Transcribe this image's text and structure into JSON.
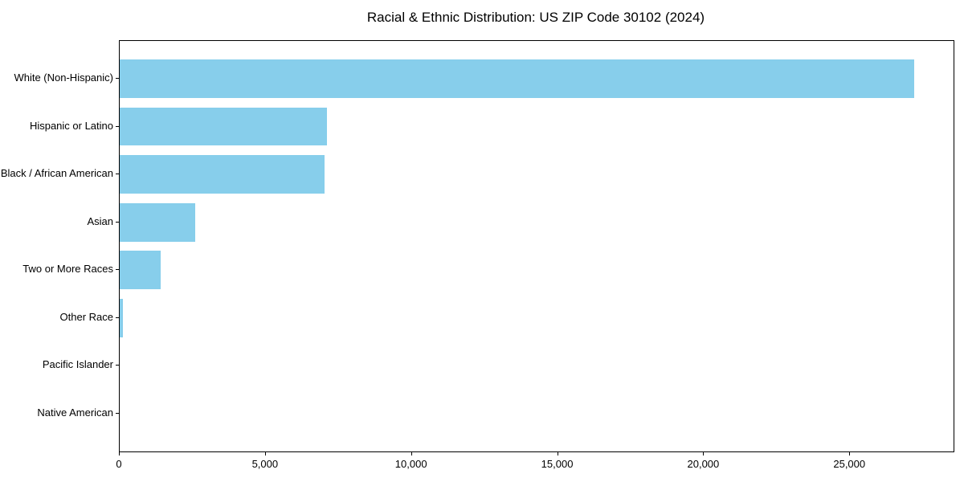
{
  "figure": {
    "background_color": "#ffffff",
    "text_color": "#000000",
    "frame_color": "#000000"
  },
  "chart_data": {
    "type": "bar",
    "orientation": "horizontal",
    "title": "Racial & Ethnic Distribution: US ZIP Code 30102 (2024)",
    "xlabel": "",
    "ylabel": "",
    "grid": false,
    "legend": null,
    "bar_color": "#87CEEB",
    "categories": [
      "White (Non-Hispanic)",
      "Hispanic or Latino",
      "Black / African American",
      "Asian",
      "Two or More Races",
      "Other Race",
      "Pacific Islander",
      "Native American"
    ],
    "values": [
      27180,
      7090,
      7020,
      2580,
      1400,
      100,
      0,
      0
    ],
    "xlim": [
      0,
      28540
    ],
    "x_ticks": [
      {
        "value": 0,
        "label": "0"
      },
      {
        "value": 5000,
        "label": "5,000"
      },
      {
        "value": 10000,
        "label": "10,000"
      },
      {
        "value": 15000,
        "label": "15,000"
      },
      {
        "value": 20000,
        "label": "20,000"
      },
      {
        "value": 25000,
        "label": "25,000"
      }
    ]
  }
}
